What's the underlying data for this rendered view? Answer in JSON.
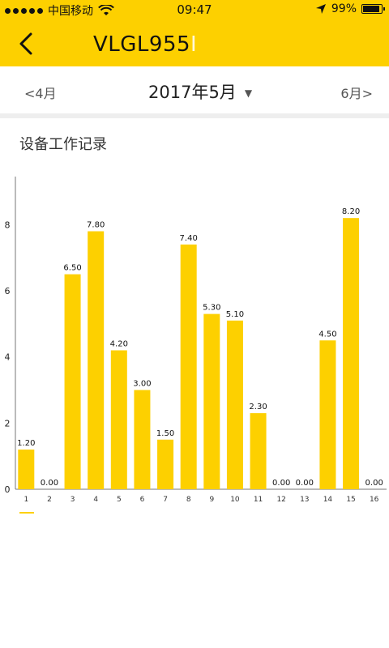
{
  "status_bar": {
    "carrier": "中国移动",
    "time": "09:47",
    "battery": "99%",
    "battery_level": 0.99
  },
  "header": {
    "title_main": "VLGL955",
    "title_faded": "I"
  },
  "month_nav": {
    "prev": "4月",
    "current": "2017年5月",
    "next": "6月"
  },
  "section": {
    "title": "设备工作记录"
  },
  "colors": {
    "accent": "#FDD000",
    "bar": "#FDD000",
    "divider": "#EEEEEE"
  },
  "icons": {
    "back": "chevron-left-icon",
    "dropdown": "triangle-down-icon",
    "location": "location-arrow-icon",
    "wifi": "wifi-icon",
    "battery": "battery-icon"
  },
  "chart_data": {
    "type": "bar",
    "categories": [
      "1",
      "2",
      "3",
      "4",
      "5",
      "6",
      "7",
      "8",
      "9",
      "10",
      "11",
      "12",
      "13",
      "14",
      "15",
      "16"
    ],
    "values": [
      1.2,
      0,
      6.5,
      7.8,
      4.2,
      3.0,
      1.5,
      7.4,
      5.3,
      5.1,
      2.3,
      0,
      0,
      4.5,
      8.2,
      0
    ],
    "value_labels": [
      "1.20",
      "0.00",
      "6.50",
      "7.80",
      "4.20",
      "3.00",
      "1.50",
      "7.40",
      "5.30",
      "5.10",
      "2.30",
      "0.00",
      "0.00",
      "4.50",
      "8.20",
      "0.00"
    ],
    "y_ticks": [
      0,
      2,
      4,
      6,
      8
    ],
    "ylim": [
      0,
      9
    ],
    "grid": false,
    "legend": "bottom-left"
  }
}
